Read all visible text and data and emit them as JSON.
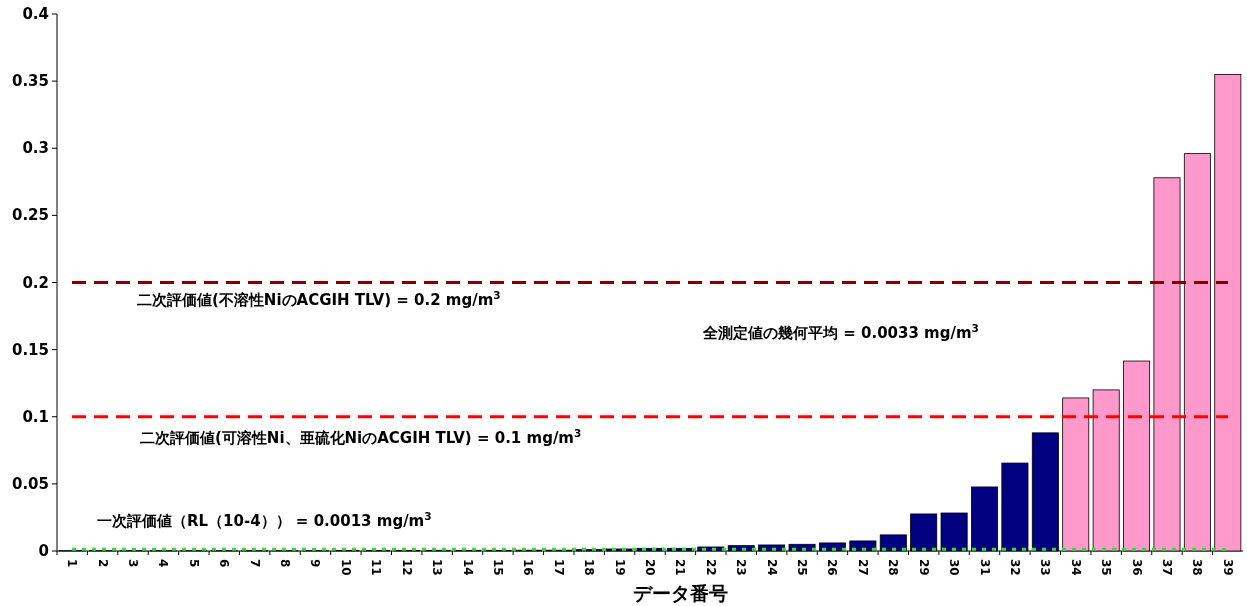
{
  "chart_data": {
    "type": "bar",
    "xlabel": "データ番号",
    "categories": [
      "1",
      "2",
      "3",
      "4",
      "5",
      "6",
      "7",
      "8",
      "9",
      "10",
      "11",
      "12",
      "13",
      "14",
      "15",
      "16",
      "17",
      "18",
      "19",
      "20",
      "21",
      "22",
      "23",
      "24",
      "25",
      "26",
      "27",
      "28",
      "29",
      "30",
      "31",
      "32",
      "33",
      "34",
      "35",
      "36",
      "37",
      "38",
      "39"
    ],
    "values": [
      0.0002,
      0.0002,
      0.0002,
      0.0002,
      0.0002,
      0.0002,
      0.0002,
      0.0002,
      0.0002,
      0.0004,
      0.0004,
      0.0004,
      0.0005,
      0.0005,
      0.0005,
      0.0006,
      0.0006,
      0.001,
      0.0015,
      0.002,
      0.002,
      0.003,
      0.004,
      0.0045,
      0.005,
      0.006,
      0.0075,
      0.012,
      0.0276,
      0.0283,
      0.0477,
      0.0655,
      0.088,
      0.114,
      0.12,
      0.1415,
      0.278,
      0.296,
      0.355
    ],
    "colors": [
      "#000080",
      "#000080",
      "#000080",
      "#000080",
      "#000080",
      "#000080",
      "#000080",
      "#000080",
      "#000080",
      "#000080",
      "#000080",
      "#000080",
      "#000080",
      "#000080",
      "#000080",
      "#000080",
      "#000080",
      "#000080",
      "#000080",
      "#000080",
      "#000080",
      "#000080",
      "#000080",
      "#000080",
      "#000080",
      "#000080",
      "#000080",
      "#000080",
      "#000080",
      "#000080",
      "#000080",
      "#000080",
      "#000080",
      "#ff99cc",
      "#ff99cc",
      "#ff99cc",
      "#ff99cc",
      "#ff99cc",
      "#ff99cc"
    ],
    "ylim": [
      0,
      0.4
    ],
    "yticks": [
      0,
      0.05,
      0.1,
      0.15,
      0.2,
      0.25,
      0.3,
      0.35,
      0.4
    ],
    "grid": false,
    "ref_lines": [
      {
        "axis": "y",
        "value": 0.2,
        "label": "二次評価値(不溶性NiのACGIH TLV) = 0.2 mg/m$^{3}$",
        "color": "#800000",
        "line_style": "dashed"
      },
      {
        "axis": "y",
        "value": 0.1,
        "label": "二次評価値(可溶性Ni、亜硫化NiのACGIH TLV) = 0.1 mg/m$^{3}$",
        "color": "#ff0000",
        "line_style": "dashed"
      },
      {
        "axis": "y",
        "value": 0.0013,
        "label": "一次評価値（RL（10-4）） = 0.0013 mg/m$^{3}$",
        "color": "#33dd33",
        "line_style": "dotted"
      }
    ],
    "annotations": [
      "全測定値の幾何平均 = 0.0033 mg/m$^{3}$"
    ]
  }
}
